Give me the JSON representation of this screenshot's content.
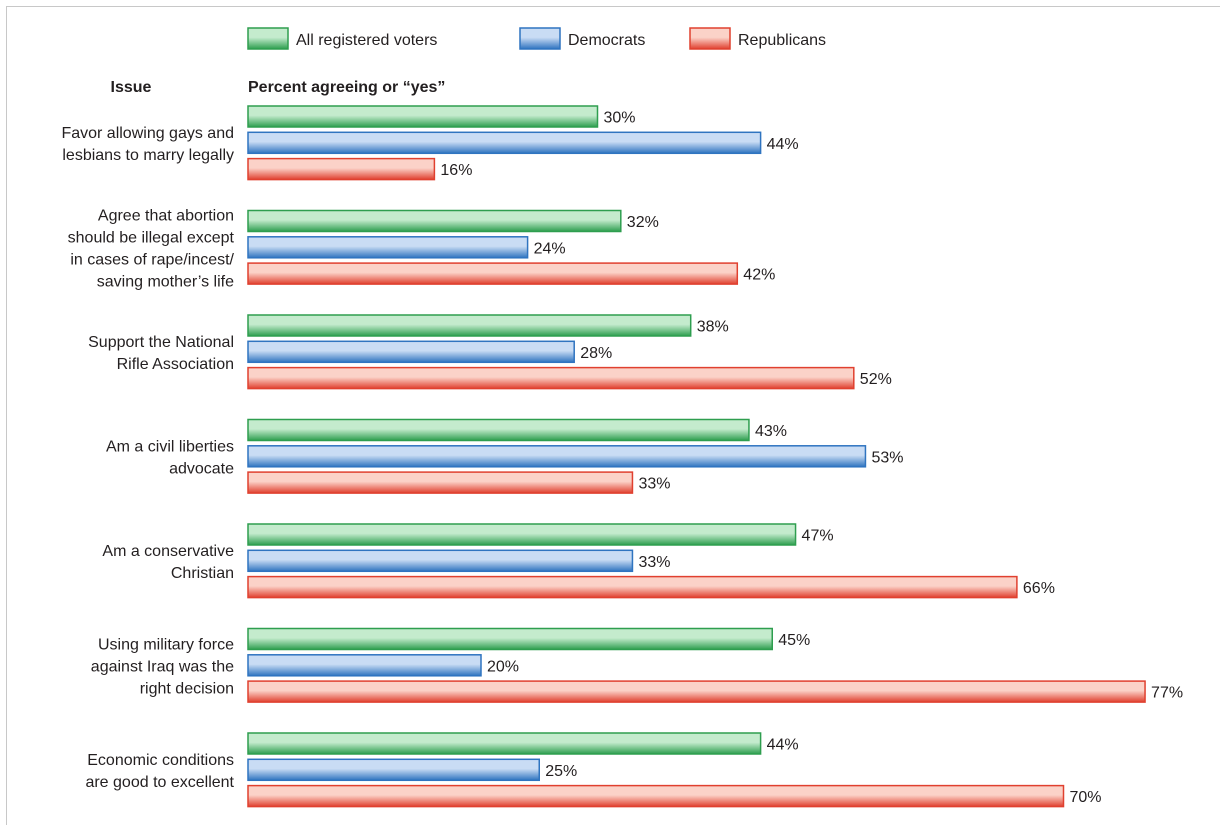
{
  "chart_data": {
    "type": "bar",
    "orientation": "horizontal",
    "category_header": "Issue",
    "value_header": "Percent agreeing or “yes”",
    "legend_position": "top",
    "value_suffix": "%",
    "xlim": [
      0,
      100
    ],
    "categories": [
      [
        "Favor allowing gays and",
        "lesbians to marry legally"
      ],
      [
        "Agree that abortion",
        "should be illegal except",
        "in cases of rape/incest/",
        "saving mother’s life"
      ],
      [
        "Support the National",
        "Rifle Association"
      ],
      [
        "Am a civil liberties",
        "advocate"
      ],
      [
        "Am a conservative",
        "Christian"
      ],
      [
        "Using military force",
        "against Iraq was the",
        "right decision"
      ],
      [
        "Economic conditions",
        "are good to excellent"
      ]
    ],
    "series": [
      {
        "name": "All registered voters",
        "color": "#2e9e4f",
        "light": "#c4ebcd",
        "values": [
          30,
          32,
          38,
          43,
          47,
          45,
          44
        ]
      },
      {
        "name": "Democrats",
        "color": "#2f74c0",
        "light": "#c9dcf4",
        "values": [
          44,
          24,
          28,
          53,
          33,
          20,
          25
        ]
      },
      {
        "name": "Republicans",
        "color": "#e0402f",
        "light": "#fbd2c8",
        "values": [
          16,
          42,
          52,
          33,
          66,
          77,
          70
        ]
      }
    ]
  }
}
